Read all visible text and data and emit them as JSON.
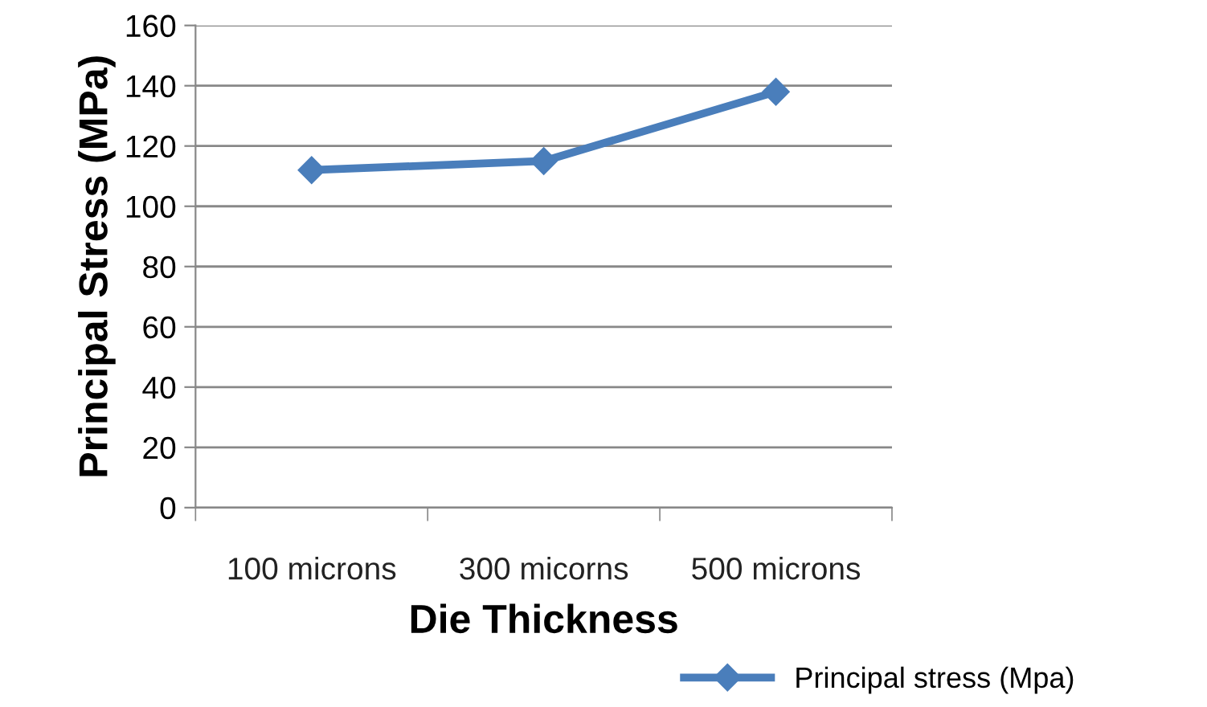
{
  "chart_data": {
    "type": "line",
    "xlabel": "Die Thickness",
    "ylabel": "Principal Stress (MPa)",
    "categories": [
      "100 microns",
      "300 micorns",
      "500 microns"
    ],
    "series": [
      {
        "name": "Principal stress (Mpa)",
        "color": "#4a7ebb",
        "values": [
          112,
          115,
          138
        ]
      }
    ],
    "ylim": [
      0,
      160
    ],
    "yticks": [
      0,
      20,
      40,
      60,
      80,
      100,
      120,
      140,
      160
    ],
    "grid": "y",
    "legend": "bottom right",
    "marker": "diamond",
    "line_style": "solid"
  }
}
